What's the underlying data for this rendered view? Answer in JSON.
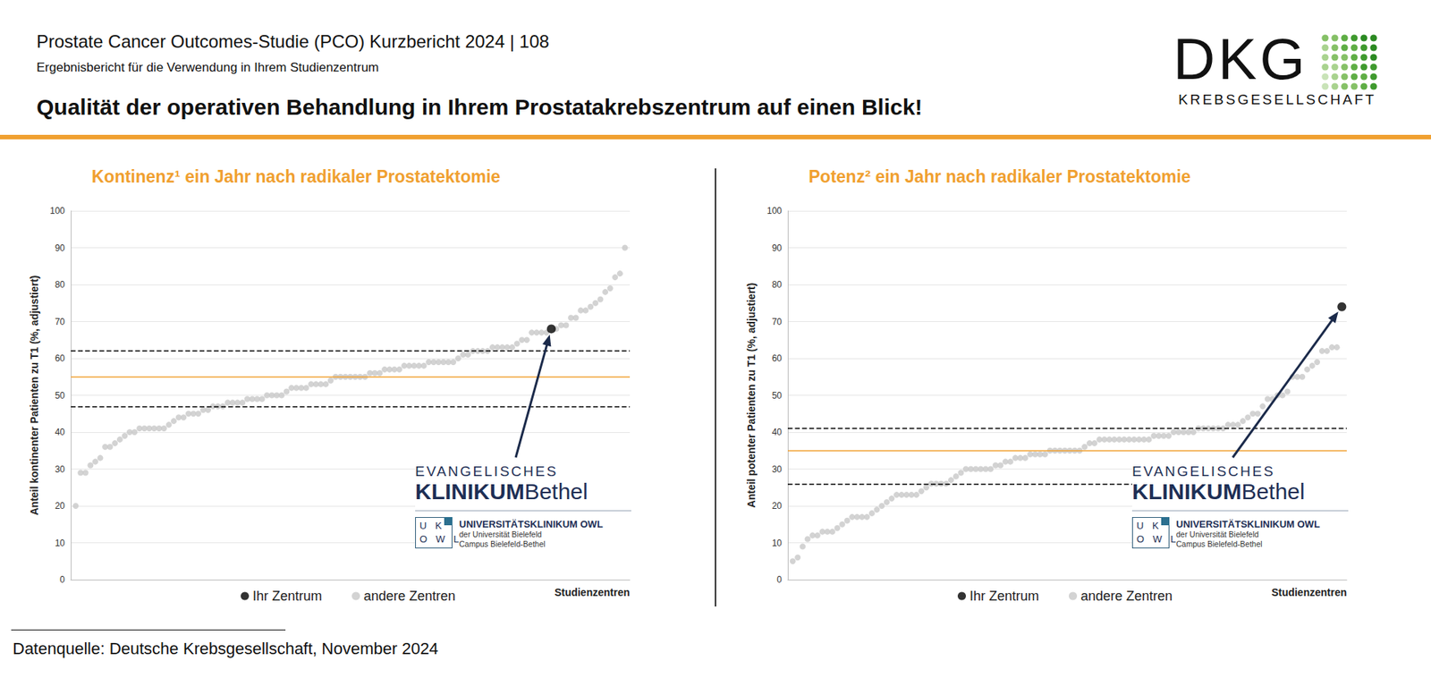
{
  "header": {
    "title": "Prostate Cancer Outcomes-Studie (PCO) Kurzbericht 2024 | 108",
    "subtitle": "Ergebnisbericht für die Verwendung in Ihrem Studienzentrum",
    "headline": "Qualität der operativen Behandlung in Ihrem Prostatakrebszentrum auf einen Blick!"
  },
  "logo": {
    "name": "DKG",
    "subname": "KREBSGESELLSCHAFT"
  },
  "footer": "Datenquelle: Deutsche Krebsgesellschaft, November 2024",
  "chart_data": [
    {
      "type": "scatter",
      "title": "Kontinenz¹ ein Jahr nach radikaler Prostatektomie",
      "x_label": "Studienzentren",
      "y_label": "Anteil kontinenter Patienten zu T1 (%, adjustiert)",
      "xlim": [
        0,
        114
      ],
      "ylim": [
        0,
        100
      ],
      "yticks": [
        0,
        10,
        20,
        30,
        40,
        50,
        60,
        70,
        80,
        90,
        100
      ],
      "grid": true,
      "legend": "bottom",
      "tick_labels": "y",
      "series": [
        {
          "name": "Ihr Zentrum",
          "color": "#000000",
          "x": [
            98
          ],
          "values": [
            68
          ]
        },
        {
          "name": "andere Zentren",
          "color": "#c8c8c8",
          "x": [
            1,
            2,
            3,
            4,
            5,
            6,
            7,
            8,
            9,
            10,
            11,
            12,
            13,
            14,
            15,
            16,
            17,
            18,
            19,
            20,
            21,
            22,
            23,
            24,
            25,
            26,
            27,
            28,
            29,
            30,
            31,
            32,
            33,
            34,
            35,
            36,
            37,
            38,
            39,
            40,
            41,
            42,
            43,
            44,
            45,
            46,
            47,
            48,
            49,
            50,
            51,
            52,
            53,
            54,
            55,
            56,
            57,
            58,
            59,
            60,
            61,
            62,
            63,
            64,
            65,
            66,
            67,
            68,
            69,
            70,
            71,
            72,
            73,
            74,
            75,
            76,
            77,
            78,
            79,
            80,
            81,
            82,
            83,
            84,
            85,
            86,
            87,
            88,
            89,
            90,
            91,
            92,
            93,
            94,
            95,
            96,
            97,
            99,
            100,
            101,
            102,
            103,
            104,
            105,
            106,
            107,
            108,
            109,
            110,
            111,
            112,
            113
          ],
          "values": [
            20,
            29,
            29,
            31,
            32,
            33,
            36,
            36,
            37,
            38,
            39,
            40,
            40,
            41,
            41,
            41,
            41,
            41,
            41,
            42,
            43,
            44,
            44,
            45,
            45,
            45,
            46,
            46,
            47,
            47,
            47,
            48,
            48,
            48,
            48,
            49,
            49,
            49,
            49,
            50,
            50,
            50,
            50,
            51,
            52,
            52,
            52,
            52,
            53,
            53,
            53,
            53,
            54,
            55,
            55,
            55,
            55,
            55,
            55,
            55,
            56,
            56,
            56,
            57,
            57,
            57,
            57,
            58,
            58,
            58,
            58,
            58,
            59,
            59,
            59,
            59,
            59,
            59,
            60,
            61,
            61,
            62,
            62,
            62,
            62,
            63,
            63,
            63,
            63,
            63,
            64,
            65,
            65,
            67,
            67,
            67,
            67,
            68,
            69,
            69,
            71,
            71,
            73,
            73,
            74,
            75,
            76,
            78,
            79,
            82,
            83,
            90
          ]
        }
      ],
      "hlines": [
        {
          "value": 62,
          "color": "#000000",
          "line_style": "dashed"
        },
        {
          "value": 55,
          "color": "#f0a030",
          "line_style": "solid"
        },
        {
          "value": 47,
          "color": "#000000",
          "line_style": "dashed"
        }
      ],
      "annotation": {
        "arrow_to": "Ihr Zentrum",
        "line1": "EVANGELISCHES",
        "bold": "KLINIKUM",
        "light": "Bethel",
        "badge": [
          "U K",
          "O W L"
        ],
        "org": "UNIVERSITÄTSKLINIKUM OWL",
        "org_sub": [
          "der Universität Bielefeld",
          "Campus Bielefeld-Bethel"
        ]
      }
    },
    {
      "type": "scatter",
      "title": "Potenz² ein Jahr nach radikaler Prostatektomie",
      "x_label": "Studienzentren",
      "y_label": "Anteil potenter Patienten zu T1 (%, adjustiert)",
      "xlim": [
        0,
        113
      ],
      "ylim": [
        0,
        100
      ],
      "yticks": [
        0,
        10,
        20,
        30,
        40,
        50,
        60,
        70,
        80,
        90,
        100
      ],
      "grid": true,
      "legend": "bottom",
      "tick_labels": "y",
      "series": [
        {
          "name": "Ihr Zentrum",
          "color": "#000000",
          "x": [
            112
          ],
          "values": [
            74
          ]
        },
        {
          "name": "andere Zentren",
          "color": "#c8c8c8",
          "x": [
            1,
            2,
            3,
            4,
            5,
            6,
            7,
            8,
            9,
            10,
            11,
            12,
            13,
            14,
            15,
            16,
            17,
            18,
            19,
            20,
            21,
            22,
            23,
            24,
            25,
            26,
            27,
            28,
            29,
            30,
            31,
            32,
            33,
            34,
            35,
            36,
            37,
            38,
            39,
            40,
            41,
            42,
            43,
            44,
            45,
            46,
            47,
            48,
            49,
            50,
            51,
            52,
            53,
            54,
            55,
            56,
            57,
            58,
            59,
            60,
            61,
            62,
            63,
            64,
            65,
            66,
            67,
            68,
            69,
            70,
            71,
            72,
            73,
            74,
            75,
            76,
            77,
            78,
            79,
            80,
            81,
            82,
            83,
            84,
            85,
            86,
            87,
            88,
            89,
            90,
            91,
            92,
            93,
            94,
            95,
            96,
            97,
            98,
            99,
            100,
            101,
            102,
            103,
            104,
            105,
            106,
            107,
            108,
            109,
            110,
            111
          ],
          "values": [
            5,
            6,
            9,
            11,
            12,
            12,
            13,
            13,
            13,
            14,
            15,
            16,
            17,
            17,
            17,
            17,
            18,
            19,
            20,
            21,
            22,
            23,
            23,
            23,
            23,
            23,
            24,
            25,
            26,
            26,
            26,
            26,
            27,
            28,
            29,
            30,
            30,
            30,
            30,
            30,
            30,
            31,
            31,
            32,
            32,
            33,
            33,
            33,
            34,
            34,
            34,
            34,
            35,
            35,
            35,
            35,
            35,
            35,
            35,
            36,
            37,
            37,
            38,
            38,
            38,
            38,
            38,
            38,
            38,
            38,
            38,
            38,
            38,
            39,
            39,
            39,
            39,
            40,
            40,
            40,
            40,
            40,
            41,
            41,
            41,
            41,
            41,
            41,
            42,
            42,
            42,
            43,
            44,
            45,
            45,
            47,
            49,
            49,
            50,
            50,
            51,
            55,
            55,
            55,
            57,
            58,
            59,
            62,
            62,
            63,
            63
          ]
        }
      ],
      "hlines": [
        {
          "value": 41,
          "color": "#000000",
          "line_style": "dashed"
        },
        {
          "value": 35,
          "color": "#f0a030",
          "line_style": "solid"
        },
        {
          "value": 26,
          "color": "#000000",
          "line_style": "dashed"
        }
      ],
      "annotation": {
        "arrow_to": "Ihr Zentrum",
        "line1": "EVANGELISCHES",
        "bold": "KLINIKUM",
        "light": "Bethel",
        "badge": [
          "U K",
          "O W L"
        ],
        "org": "UNIVERSITÄTSKLINIKUM OWL",
        "org_sub": [
          "der Universität Bielefeld",
          "Campus Bielefeld-Bethel"
        ]
      }
    }
  ]
}
